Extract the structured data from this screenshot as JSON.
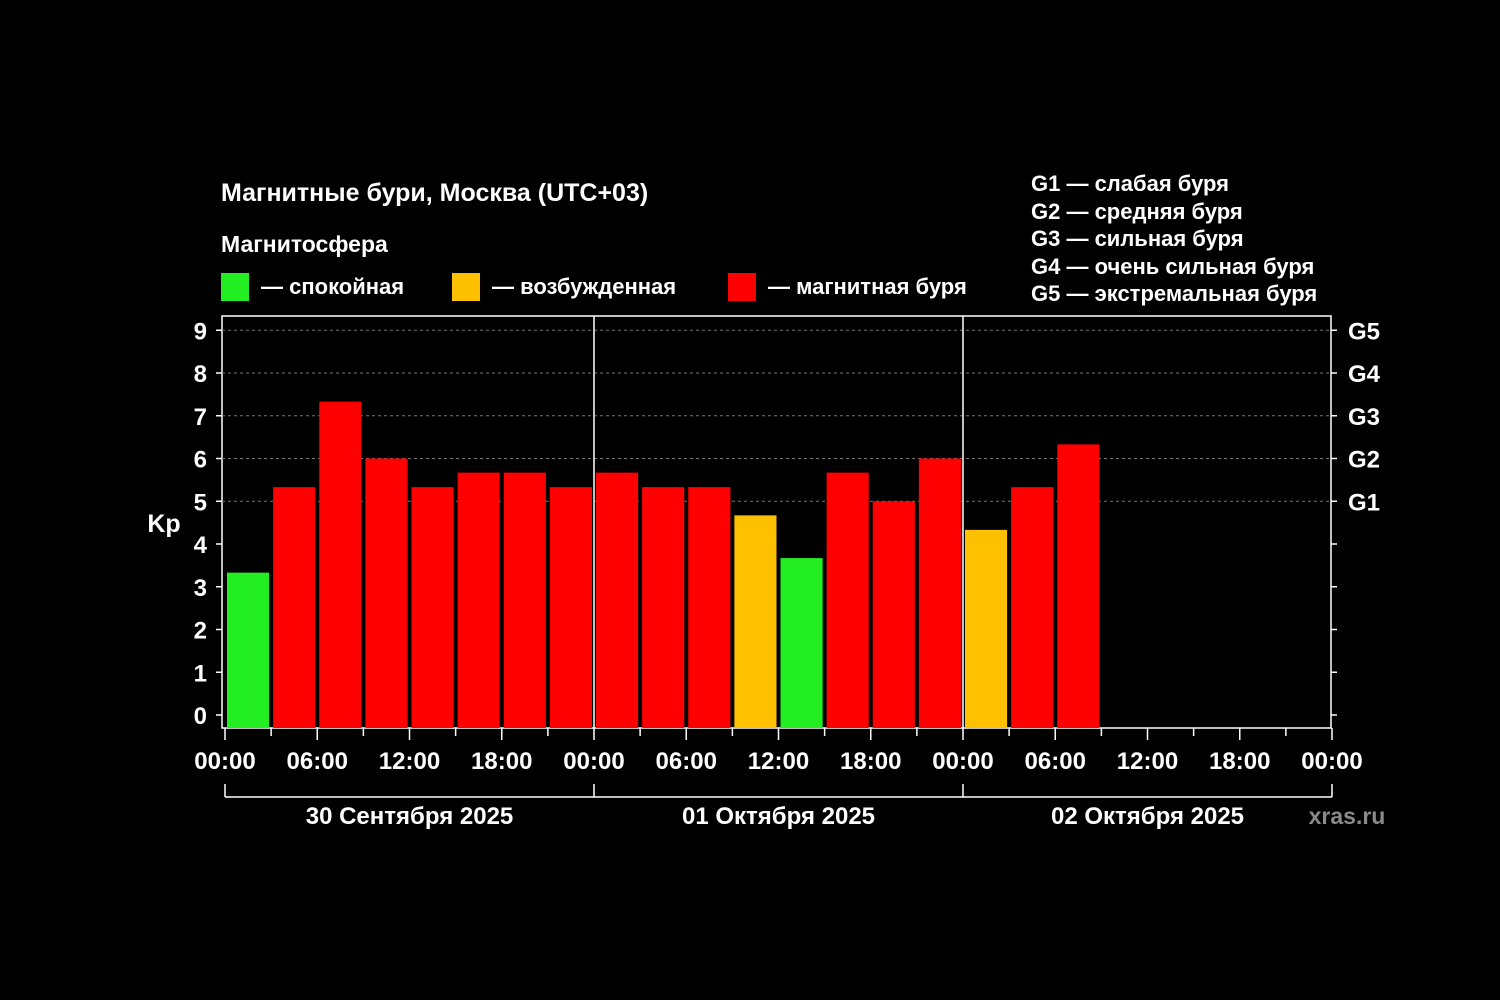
{
  "chart_data": {
    "type": "bar",
    "title": "Магнитные бури, Москва (UTC+03)",
    "legend": {
      "heading": "Магнитосфера",
      "items": [
        {
          "label": "— спокойная",
          "color": "#22ee22"
        },
        {
          "label": "— возбужденная",
          "color": "#ffc000"
        },
        {
          "label": "— магнитная буря",
          "color": "#ff0000"
        }
      ]
    },
    "g_scale": [
      "G1 — слабая буря",
      "G2 — средняя буря",
      "G3 — сильная буря",
      "G4 — очень сильная буря",
      "G5 — экстремальная буря"
    ],
    "ylabel": "Kp",
    "ylim": [
      0,
      9
    ],
    "y_ticks": [
      "0",
      "1",
      "2",
      "3",
      "4",
      "5",
      "6",
      "7",
      "8",
      "9"
    ],
    "right_ticks": [
      {
        "value": 5,
        "label": "G1"
      },
      {
        "value": 6,
        "label": "G2"
      },
      {
        "value": 7,
        "label": "G3"
      },
      {
        "value": 8,
        "label": "G4"
      },
      {
        "value": 9,
        "label": "G5"
      }
    ],
    "x_ticks": [
      "00:00",
      "06:00",
      "12:00",
      "18:00",
      "00:00",
      "06:00",
      "12:00",
      "18:00",
      "00:00",
      "06:00",
      "12:00",
      "18:00",
      "00:00"
    ],
    "days": [
      "30 Сентября 2025",
      "01 Октября 2025",
      "02 Октября 2025"
    ],
    "interval_hours": 3,
    "values": [
      3.33,
      5.33,
      7.33,
      6.0,
      5.33,
      5.67,
      5.67,
      5.33,
      5.67,
      5.33,
      5.33,
      4.67,
      3.67,
      5.67,
      5.0,
      6.0,
      4.33,
      5.33,
      6.33
    ],
    "levels": [
      "quiet",
      "storm",
      "storm",
      "storm",
      "storm",
      "storm",
      "storm",
      "storm",
      "storm",
      "storm",
      "storm",
      "excited",
      "quiet",
      "storm",
      "storm",
      "storm",
      "excited",
      "storm",
      "storm"
    ],
    "level_colors": {
      "quiet": "#22ee22",
      "excited": "#ffc000",
      "storm": "#ff0000"
    },
    "grid": true
  },
  "watermark": "xras.ru"
}
